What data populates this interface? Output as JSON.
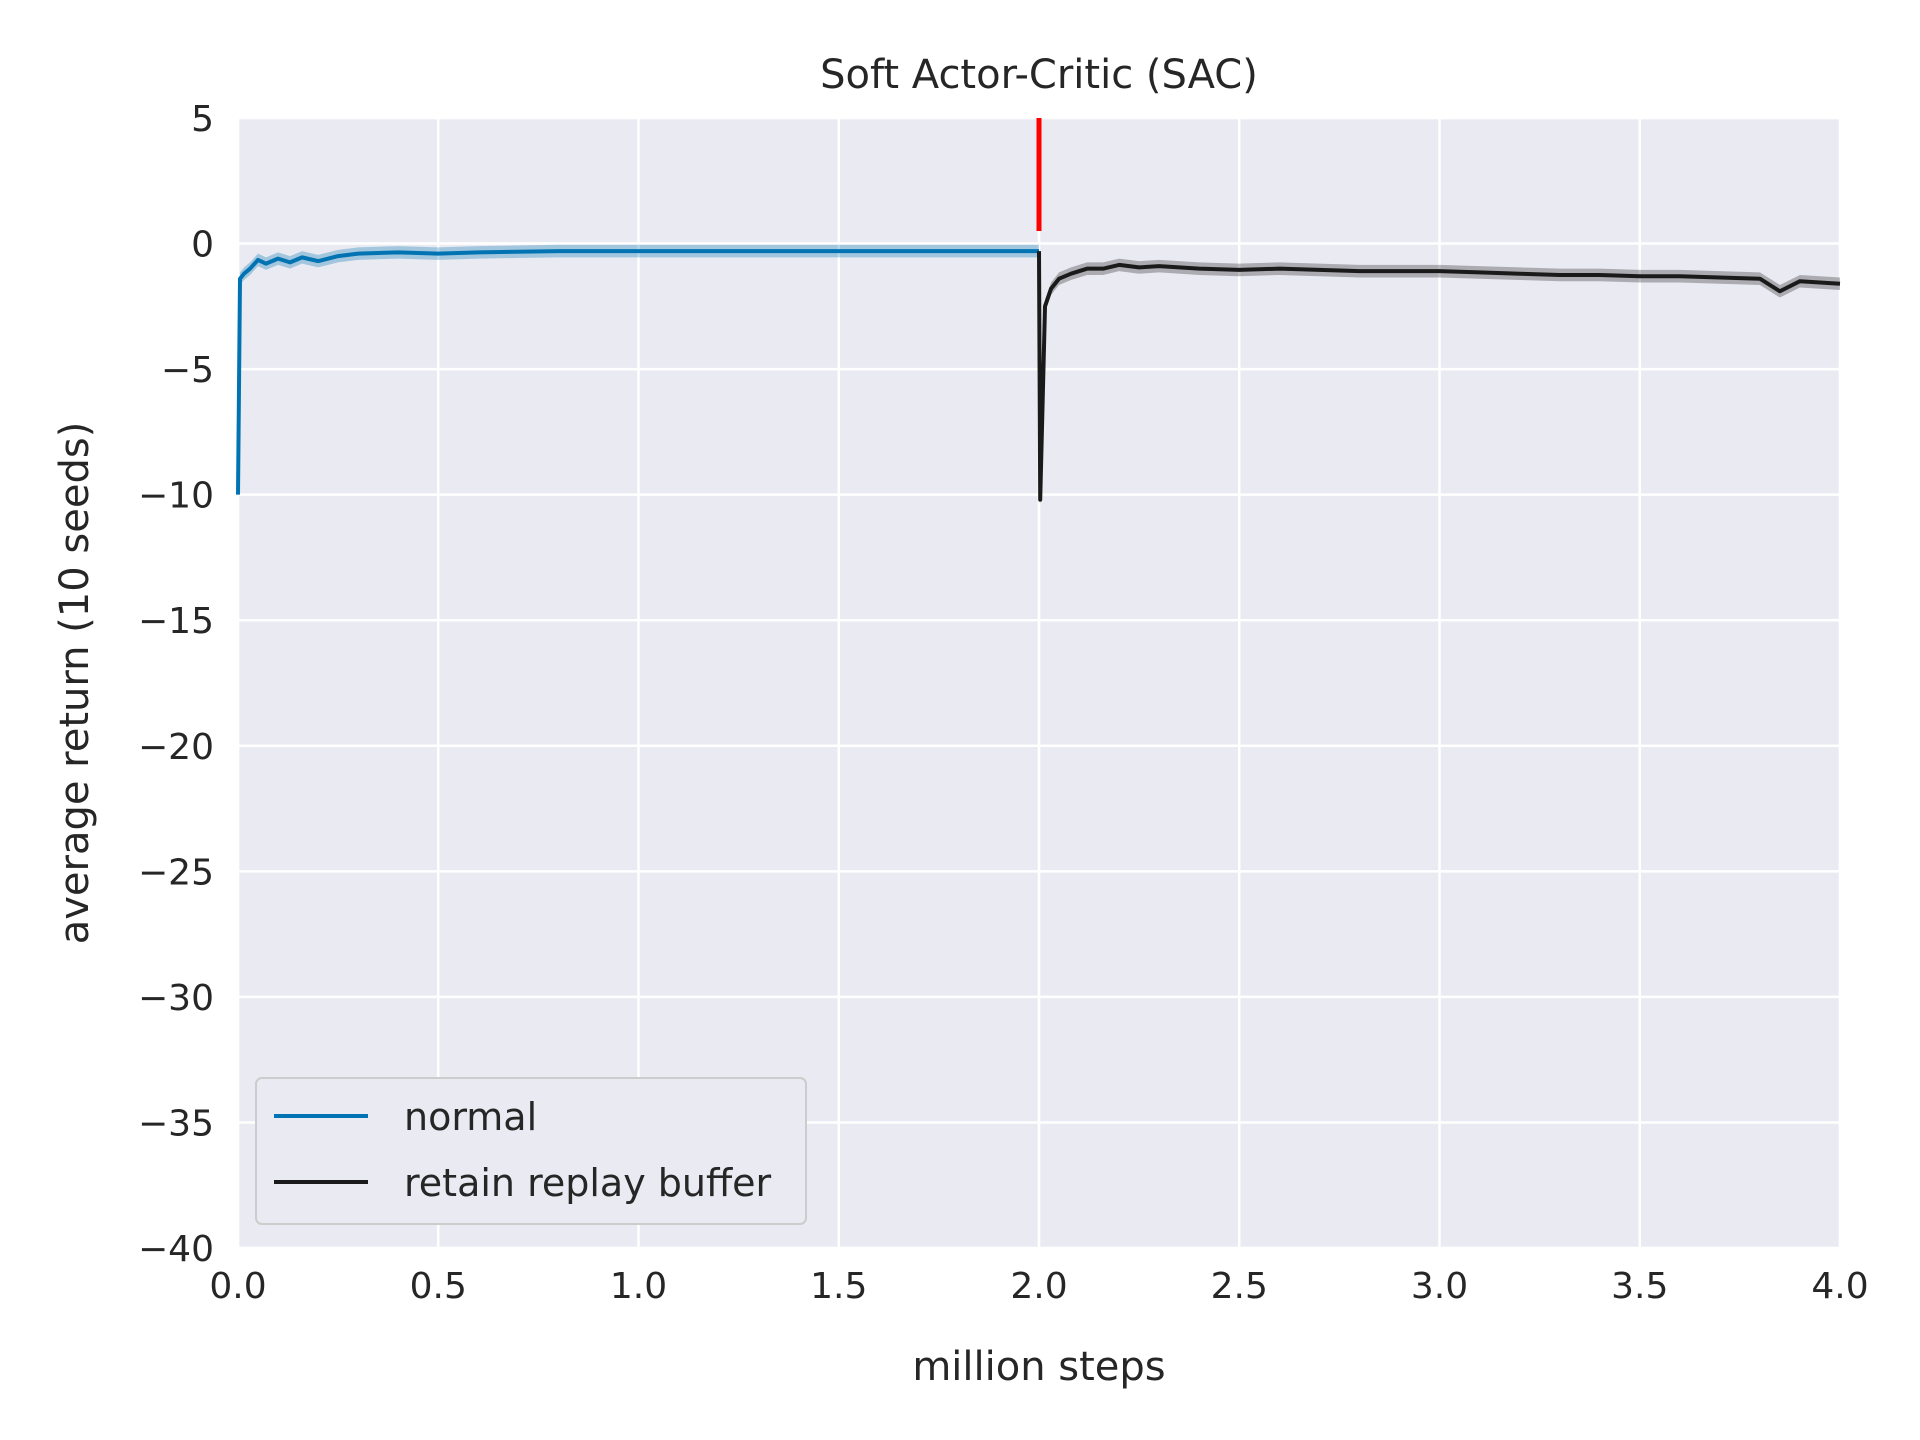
{
  "chart_data": {
    "type": "line",
    "title": "Soft Actor-Critic (SAC)",
    "xlabel": "million steps",
    "ylabel": "average return (10 seeds)",
    "xlim": [
      0,
      4
    ],
    "ylim": [
      -40,
      5
    ],
    "xticks": [
      "0.0",
      "0.5",
      "1.0",
      "1.5",
      "2.0",
      "2.5",
      "3.0",
      "3.5",
      "4.0"
    ],
    "yticks": [
      "5",
      "0",
      "−5",
      "−10",
      "−15",
      "−20",
      "−25",
      "−30",
      "−35",
      "−40"
    ],
    "grid": true,
    "legend_position": "lower-left",
    "background": "#eaeaf2",
    "vline": {
      "x": 2.0,
      "y_range": [
        0.5,
        5
      ],
      "color": "#ff0000"
    },
    "series": [
      {
        "name": "normal",
        "color": "#0173b2",
        "x": [
          0.0,
          0.005,
          0.015,
          0.03,
          0.05,
          0.07,
          0.1,
          0.13,
          0.16,
          0.2,
          0.25,
          0.3,
          0.4,
          0.5,
          0.6,
          0.8,
          1.0,
          1.2,
          1.4,
          1.6,
          1.8,
          2.0
        ],
        "y": [
          -10.0,
          -1.4,
          -1.2,
          -1.0,
          -0.65,
          -0.8,
          -0.6,
          -0.75,
          -0.55,
          -0.7,
          -0.5,
          -0.4,
          -0.35,
          -0.4,
          -0.35,
          -0.3,
          -0.3,
          -0.3,
          -0.3,
          -0.3,
          -0.3,
          -0.3
        ]
      },
      {
        "name": "retain replay buffer",
        "color": "#1a1a1a",
        "x": [
          2.0,
          2.003,
          2.015,
          2.03,
          2.05,
          2.08,
          2.12,
          2.16,
          2.2,
          2.25,
          2.3,
          2.4,
          2.5,
          2.6,
          2.7,
          2.8,
          2.9,
          3.0,
          3.1,
          3.2,
          3.3,
          3.4,
          3.5,
          3.6,
          3.7,
          3.8,
          3.85,
          3.9,
          4.0
        ],
        "y": [
          -0.3,
          -10.2,
          -2.5,
          -1.8,
          -1.4,
          -1.2,
          -1.0,
          -1.0,
          -0.85,
          -0.95,
          -0.9,
          -1.0,
          -1.05,
          -1.0,
          -1.05,
          -1.1,
          -1.1,
          -1.1,
          -1.15,
          -1.2,
          -1.25,
          -1.25,
          -1.3,
          -1.3,
          -1.35,
          -1.4,
          -1.9,
          -1.5,
          -1.6
        ]
      }
    ]
  }
}
